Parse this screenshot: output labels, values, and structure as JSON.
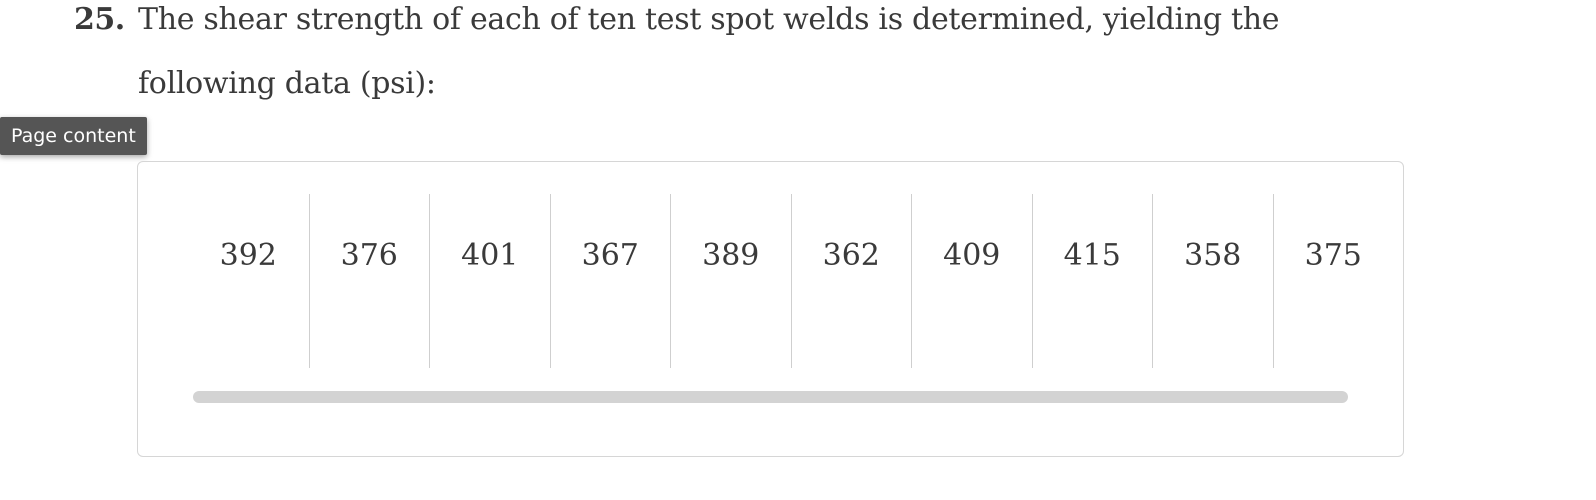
{
  "question": {
    "number": "25.",
    "text": "The shear strength of each of ten test spot welds is determined, yielding the following data (psi):"
  },
  "tooltip": {
    "label": "Page content"
  },
  "table": {
    "values": [
      "392",
      "376",
      "401",
      "367",
      "389",
      "362",
      "409",
      "415",
      "358",
      "375"
    ]
  }
}
